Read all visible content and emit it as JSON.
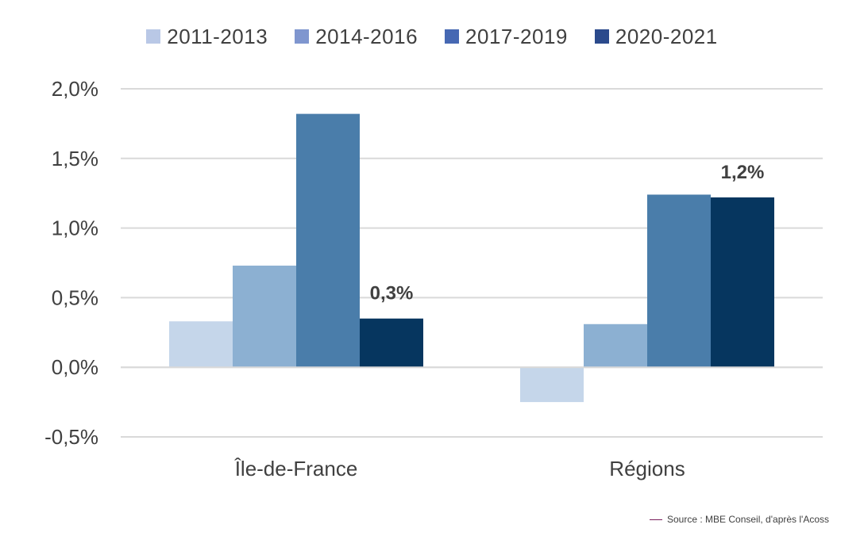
{
  "chart_data": {
    "type": "bar",
    "categories": [
      "Île-de-France",
      "Régions"
    ],
    "series": [
      {
        "name": "2011-2013",
        "values": [
          0.33,
          -0.25
        ],
        "color": "#c5d6ea"
      },
      {
        "name": "2014-2016",
        "values": [
          0.73,
          0.31
        ],
        "color": "#8cb0d2"
      },
      {
        "name": "2017-2019",
        "values": [
          1.82,
          1.24
        ],
        "color": "#4a7daa"
      },
      {
        "name": "2020-2021",
        "values": [
          0.35,
          1.22
        ],
        "color": "#06365f"
      }
    ],
    "ylim": [
      -0.5,
      2.0
    ],
    "yticks": [
      "2,0%",
      "1,5%",
      "1,0%",
      "0,5%",
      "0,0%",
      "-0,5%"
    ],
    "ytick_values": [
      2.0,
      1.5,
      1.0,
      0.5,
      0.0,
      -0.5
    ],
    "data_labels": [
      {
        "series": 3,
        "category": 0,
        "text": "0,3%"
      },
      {
        "series": 3,
        "category": 1,
        "text": "1,2%"
      }
    ],
    "legend_placement": "top-center",
    "grid": true
  },
  "legend_swatch_colors": [
    "#b9c8e6",
    "#7f96cf",
    "#4668b3",
    "#2b4a8c"
  ],
  "source": "Source : MBE Conseil, d'après l'Acoss"
}
